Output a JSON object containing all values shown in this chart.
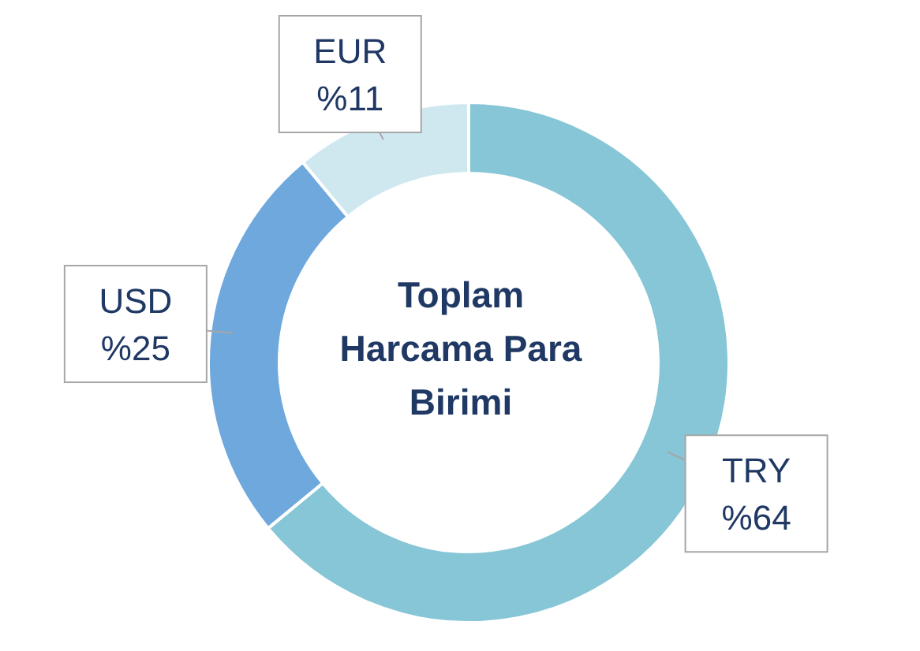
{
  "chart_data": {
    "type": "donut",
    "title": "Toplam Harcama Para Birimi",
    "categories": [
      "TRY",
      "USD",
      "EUR"
    ],
    "values": [
      64,
      25,
      11
    ],
    "value_labels": [
      "%64",
      "%25",
      "%11"
    ],
    "colors": [
      "#86c6d6",
      "#6fa8dc",
      "#cfe8f0"
    ]
  }
}
